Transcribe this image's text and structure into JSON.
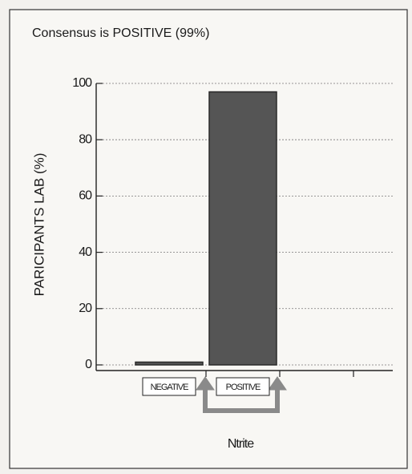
{
  "chart_data": {
    "type": "bar",
    "title": "Consensus is POSITIVE (99%)",
    "y_label": "PARICIPANTS LAB (%)",
    "x_label": "Ntrite",
    "categories": [
      "NEGATIVE",
      "POSITIVE"
    ],
    "values": [
      1,
      97
    ],
    "color": "#555555",
    "ylim": [
      -2,
      100
    ],
    "yticks": [
      0,
      20,
      40,
      60,
      80,
      100
    ],
    "grid": true
  }
}
